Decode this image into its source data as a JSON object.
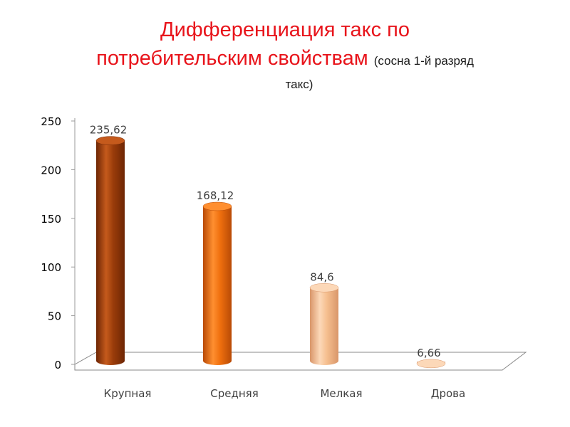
{
  "title": {
    "main_line1": "Дифференциация такс по",
    "main_line2": "потребительским свойствам",
    "sub_part1": "(сосна 1-й разряд",
    "sub_part2": "такс)"
  },
  "chart_data": {
    "type": "bar",
    "categories": [
      "Крупная",
      "Средняя",
      "Мелкая",
      "Дрова"
    ],
    "values": [
      235.62,
      168.12,
      84.6,
      6.66
    ],
    "data_labels": [
      "235,62",
      "168,12",
      "84,6",
      "6,66"
    ],
    "colors": [
      "#9a3c0a",
      "#ef6f0e",
      "#f5be8e",
      "#f5be8e"
    ],
    "colors_dark": [
      "#6e2604",
      "#b84a06",
      "#d9966a",
      "#d9966a"
    ],
    "colors_light": [
      "#c55a1c",
      "#ff8f30",
      "#fcd8b8",
      "#fcd8b8"
    ],
    "ylim": [
      0,
      250
    ],
    "yticks": [
      0,
      50,
      100,
      150,
      200,
      250
    ],
    "grid": false,
    "legend": "none",
    "style": "3d-cylinder"
  }
}
